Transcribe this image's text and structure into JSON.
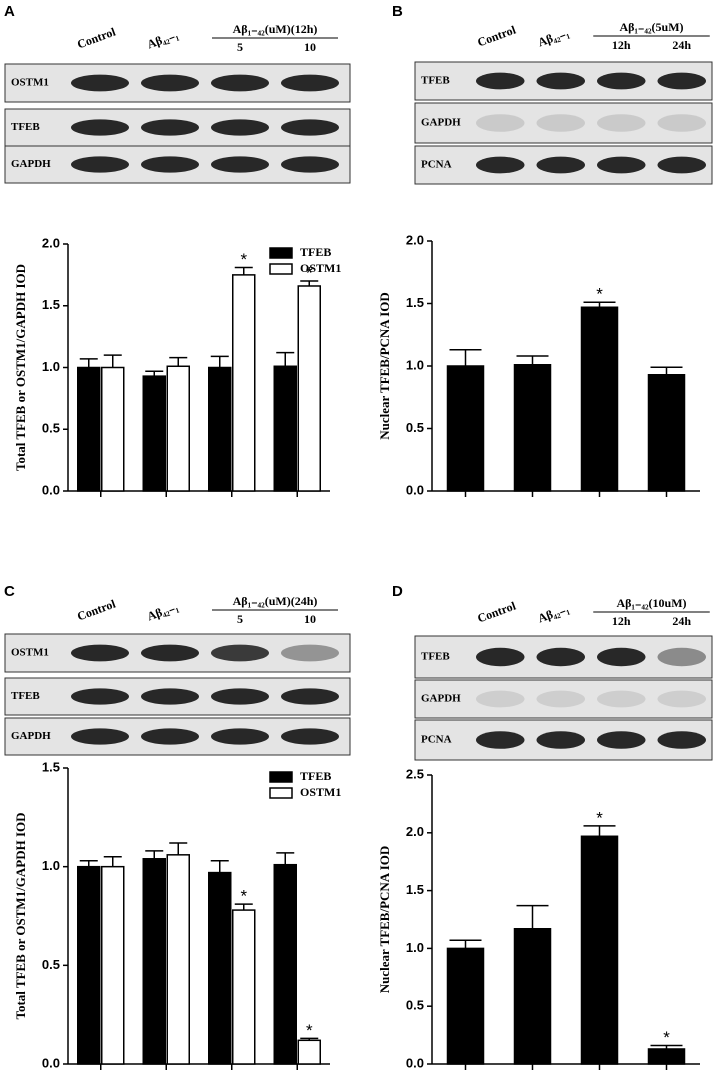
{
  "chart_data": [
    {
      "type": "bar",
      "panel_label": "A",
      "blot": {
        "lanes": [
          "Control",
          "Aβ₄₂₋₁"
        ],
        "header": "Aβ₁₋₄₂(uM)(12h)",
        "sublanes": [
          "5",
          "10"
        ],
        "rows": [
          "OSTM1",
          "TFEB",
          "GAPDH"
        ]
      },
      "y_label": "Total TFEB or OSTM1/GAPDH IOD",
      "categories": [
        null,
        null,
        null,
        null
      ],
      "ylim": [
        0,
        2
      ],
      "yticks": [
        {
          "value": 0,
          "label": "0.0"
        },
        0.5,
        {
          "value": 1,
          "label": "1.0"
        },
        1.5,
        {
          "value": 2,
          "label": "2.0"
        }
      ],
      "legend": "top-right",
      "series": [
        {
          "name": "TFEB",
          "color": "#000000",
          "values": [
            1.0,
            0.93,
            1.0,
            1.01
          ],
          "errors": [
            0.07,
            0.04,
            0.09,
            0.11
          ],
          "annotations": [
            null,
            null,
            null,
            null
          ]
        },
        {
          "name": "OSTM1",
          "color": "#ffffff",
          "values": [
            1.0,
            1.01,
            1.75,
            1.66
          ],
          "errors": [
            0.1,
            0.07,
            0.06,
            0.04
          ],
          "annotations": [
            null,
            null,
            "*",
            "*"
          ]
        }
      ]
    },
    {
      "type": "bar",
      "panel_label": "B",
      "blot": {
        "lanes": [
          "Control",
          "Aβ₄₂₋₁"
        ],
        "header": "Aβ₁₋₄₂(5uM)",
        "sublanes": [
          "12h",
          "24h"
        ],
        "rows": [
          "TFEB",
          "GAPDH",
          "PCNA"
        ]
      },
      "y_label": "Nuclear TFEB/PCNA IOD",
      "categories": [
        null,
        null,
        null,
        null
      ],
      "ylim": [
        0,
        2
      ],
      "yticks": [
        {
          "value": 0,
          "label": "0.0"
        },
        0.5,
        {
          "value": 1,
          "label": "1.0"
        },
        1.5,
        {
          "value": 2,
          "label": "2.0"
        }
      ],
      "series": [
        {
          "color": "#000000",
          "values": [
            1.0,
            1.01,
            1.47,
            0.93
          ],
          "errors": [
            0.13,
            0.07,
            0.04,
            0.06
          ],
          "annotations": [
            null,
            null,
            "*",
            null
          ]
        }
      ]
    },
    {
      "type": "bar",
      "panel_label": "C",
      "blot": {
        "lanes": [
          "Control",
          "Aβ₄₂₋₁"
        ],
        "header": "Aβ₁₋₄₂(uM)(24h)",
        "sublanes": [
          "5",
          "10"
        ],
        "rows": [
          "OSTM1",
          "TFEB",
          "GAPDH"
        ]
      },
      "y_label": "Total TFEB or OSTM1/GAPDH IOD",
      "categories": [
        null,
        null,
        null,
        null
      ],
      "ylim": [
        0,
        1.5
      ],
      "yticks": [
        {
          "value": 0,
          "label": "0.0"
        },
        0.5,
        {
          "value": 1,
          "label": "1.0"
        },
        1.5
      ],
      "legend": "top-right",
      "series": [
        {
          "name": "TFEB",
          "color": "#000000",
          "values": [
            1.0,
            1.04,
            0.97,
            1.01
          ],
          "errors": [
            0.03,
            0.04,
            0.06,
            0.06
          ],
          "annotations": [
            null,
            null,
            null,
            null
          ]
        },
        {
          "name": "OSTM1",
          "color": "#ffffff",
          "values": [
            1.0,
            1.06,
            0.78,
            0.12
          ],
          "errors": [
            0.05,
            0.06,
            0.03,
            0.01
          ],
          "annotations": [
            null,
            null,
            "*",
            "*"
          ]
        }
      ]
    },
    {
      "type": "bar",
      "panel_label": "D",
      "blot": {
        "lanes": [
          "Control",
          "Aβ₄₂₋₁"
        ],
        "header": "Aβ₁₋₄₂(10uM)",
        "sublanes": [
          "12h",
          "24h"
        ],
        "rows": [
          "TFEB",
          "GAPDH",
          "PCNA"
        ]
      },
      "y_label": "Nuclear TFEB/PCNA IOD",
      "categories": [
        null,
        null,
        null,
        null
      ],
      "ylim": [
        0,
        2.5
      ],
      "yticks": [
        {
          "value": 0,
          "label": "0.0"
        },
        0.5,
        {
          "value": 1,
          "label": "1.0"
        },
        1.5,
        {
          "value": 2,
          "label": "2.0"
        },
        2.5
      ],
      "series": [
        {
          "color": "#000000",
          "values": [
            1.0,
            1.17,
            1.97,
            0.13
          ],
          "errors": [
            0.07,
            0.2,
            0.09,
            0.03
          ],
          "annotations": [
            null,
            null,
            "*",
            "*"
          ]
        }
      ]
    }
  ]
}
